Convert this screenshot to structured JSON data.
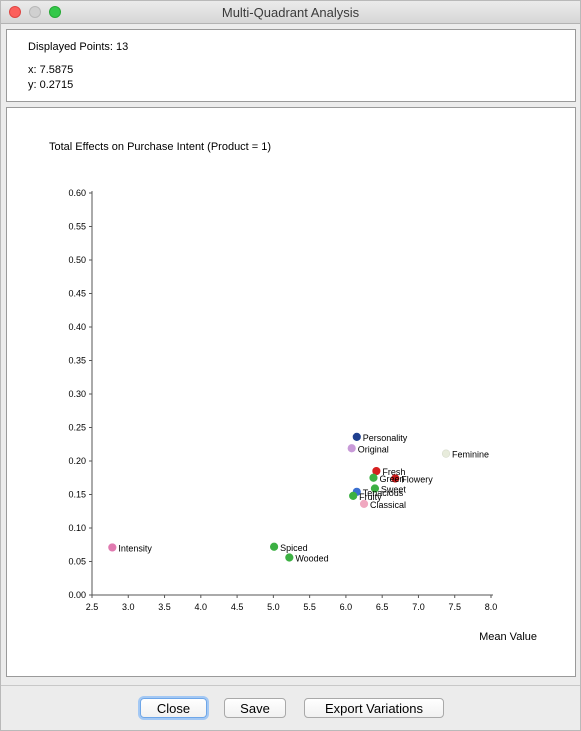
{
  "window": {
    "title": "Multi-Quadrant Analysis"
  },
  "info": {
    "displayed_points": "Displayed Points: 13",
    "x_readout": "x: 7.5875",
    "y_readout": "y: 0.2715"
  },
  "buttons": {
    "close": "Close",
    "save": "Save",
    "export": "Export Variations"
  },
  "chart_data": {
    "type": "scatter",
    "title": "Total Effects on Purchase Intent (Product = 1)",
    "xlabel": "Mean Value",
    "ylabel": "",
    "xlim": [
      2.5,
      8.0
    ],
    "ylim": [
      0.0,
      0.6
    ],
    "xticks": [
      "2.5",
      "3.0",
      "3.5",
      "4.0",
      "4.5",
      "5.0",
      "5.5",
      "6.0",
      "6.5",
      "7.0",
      "7.5",
      "8.0"
    ],
    "yticks": [
      "0.00",
      "0.05",
      "0.10",
      "0.15",
      "0.20",
      "0.25",
      "0.30",
      "0.35",
      "0.40",
      "0.45",
      "0.50",
      "0.55",
      "0.60"
    ],
    "grid": false,
    "points": [
      {
        "label": "Personality",
        "x": 6.15,
        "y": 0.236,
        "color": "#1f3f8f"
      },
      {
        "label": "Original",
        "x": 6.08,
        "y": 0.219,
        "color": "#c89ad8"
      },
      {
        "label": "Feminine",
        "x": 7.38,
        "y": 0.211,
        "color": "#e8ecdc"
      },
      {
        "label": "Fresh",
        "x": 6.42,
        "y": 0.185,
        "color": "#d62020"
      },
      {
        "label": "Flowery",
        "x": 6.68,
        "y": 0.174,
        "color": "#c81818"
      },
      {
        "label": "Green",
        "x": 6.38,
        "y": 0.175,
        "color": "#3cb043"
      },
      {
        "label": "Sweet",
        "x": 6.4,
        "y": 0.159,
        "color": "#3cb043"
      },
      {
        "label": "Tenacious",
        "x": 6.15,
        "y": 0.154,
        "color": "#3a6fd0"
      },
      {
        "label": "Fruity",
        "x": 6.1,
        "y": 0.148,
        "color": "#3cb043"
      },
      {
        "label": "Classical",
        "x": 6.25,
        "y": 0.136,
        "color": "#f0a8c0"
      },
      {
        "label": "Intensity",
        "x": 2.78,
        "y": 0.071,
        "color": "#e07ab0"
      },
      {
        "label": "Spiced",
        "x": 5.01,
        "y": 0.072,
        "color": "#3cb043"
      },
      {
        "label": "Wooded",
        "x": 5.22,
        "y": 0.056,
        "color": "#3cb043"
      }
    ]
  }
}
